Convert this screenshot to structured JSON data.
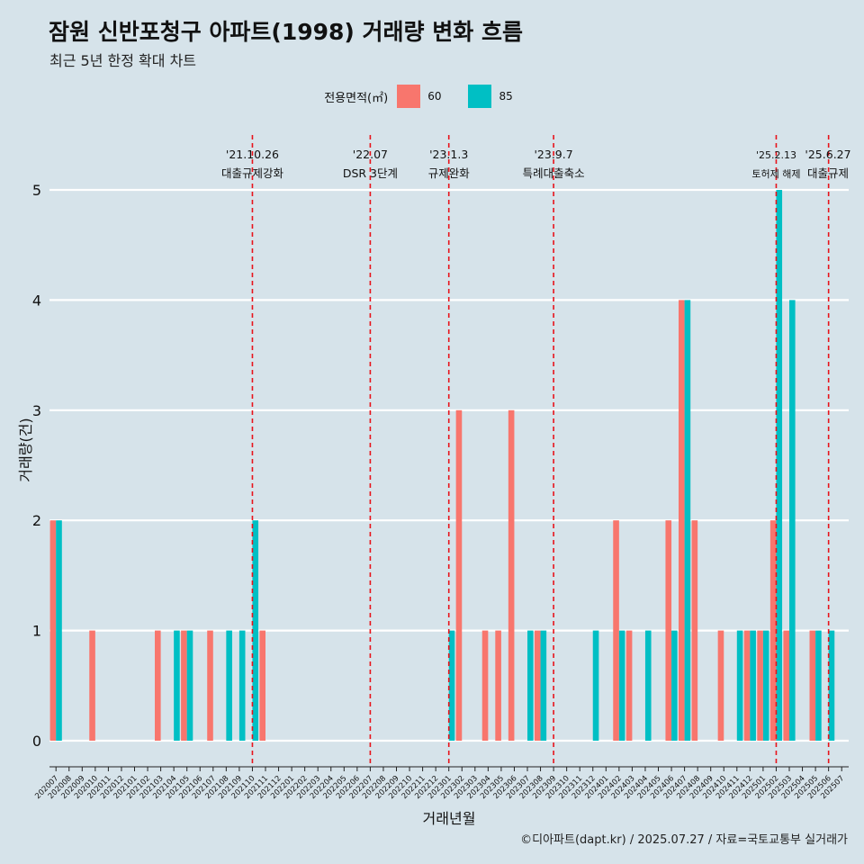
{
  "chart_data": {
    "type": "bar",
    "title": "잠원 신반포청구 아파트(1998) 거래량 변화 흐름",
    "subtitle": "최근 5년 한정 확대 차트",
    "xlabel": "거래년월",
    "ylabel": "거래량(건)",
    "legend_title": "전용면적(㎡)",
    "legend_position": "top",
    "ylim": [
      0,
      5
    ],
    "y_ticks": [
      "0",
      "1",
      "2",
      "3",
      "4",
      "5"
    ],
    "categories": [
      "202007",
      "202008",
      "202009",
      "202010",
      "202011",
      "202012",
      "202101",
      "202102",
      "202103",
      "202104",
      "202105",
      "202106",
      "202107",
      "202108",
      "202109",
      "202110",
      "202111",
      "202112",
      "202201",
      "202202",
      "202203",
      "202204",
      "202205",
      "202206",
      "202207",
      "202208",
      "202209",
      "202210",
      "202211",
      "202212",
      "202301",
      "202302",
      "202303",
      "202304",
      "202305",
      "202306",
      "202307",
      "202308",
      "202309",
      "202310",
      "202311",
      "202312",
      "202401",
      "202402",
      "202403",
      "202404",
      "202405",
      "202406",
      "202407",
      "202408",
      "202409",
      "202410",
      "202411",
      "202412",
      "202501",
      "202502",
      "202503",
      "202504",
      "202505",
      "202506",
      "202507"
    ],
    "series": [
      {
        "name": "60",
        "color": "#f8766d",
        "values": [
          2,
          0,
          0,
          1,
          0,
          0,
          0,
          0,
          1,
          0,
          1,
          0,
          1,
          0,
          0,
          0,
          1,
          0,
          0,
          0,
          0,
          0,
          0,
          0,
          0,
          0,
          0,
          0,
          0,
          0,
          0,
          3,
          0,
          1,
          1,
          3,
          0,
          1,
          0,
          0,
          0,
          0,
          0,
          2,
          1,
          0,
          0,
          2,
          4,
          2,
          0,
          1,
          0,
          1,
          1,
          2,
          1,
          0,
          1,
          0,
          0
        ]
      },
      {
        "name": "85",
        "color": "#00bfc4",
        "values": [
          2,
          0,
          0,
          0,
          0,
          0,
          0,
          0,
          0,
          1,
          1,
          0,
          0,
          1,
          1,
          2,
          0,
          0,
          0,
          0,
          0,
          0,
          0,
          0,
          0,
          0,
          0,
          0,
          0,
          0,
          1,
          0,
          0,
          0,
          0,
          0,
          1,
          1,
          0,
          0,
          0,
          1,
          0,
          1,
          0,
          1,
          0,
          1,
          4,
          0,
          0,
          0,
          1,
          1,
          1,
          5,
          4,
          0,
          1,
          1,
          0
        ]
      }
    ],
    "events": [
      {
        "category": "202110",
        "date": "'21.10.26",
        "label": "대출규제강화"
      },
      {
        "category": "202207",
        "date": "'22.07",
        "label": "DSR 3단계"
      },
      {
        "category": "202301",
        "date": "'23.1.3",
        "label": "규제완화"
      },
      {
        "category": "202309",
        "date": "'23.9.7",
        "label": "특례대출축소"
      },
      {
        "category": "202502",
        "date": "'25.2.13",
        "label": "토허제 해제"
      },
      {
        "category": "202506",
        "date": "'25.6.27",
        "label": "대출규제"
      }
    ],
    "caption": "©디아파트(dapt.kr) / 2025.07.27 / 자료=국토교통부 실거래가"
  },
  "colors": {
    "background": "#d6e3ea",
    "grid": "#ffffff",
    "event_line": "#e8131b",
    "series_60": "#f8766d",
    "series_85": "#00bfc4"
  }
}
